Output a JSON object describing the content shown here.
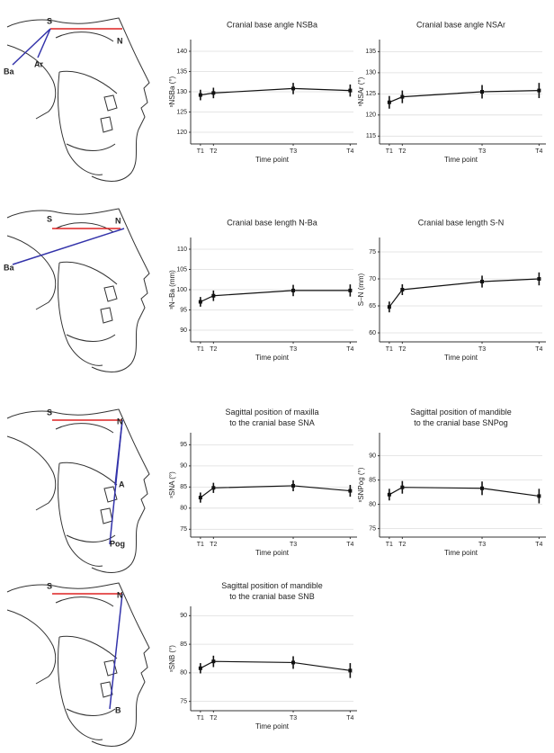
{
  "chart_data": [
    {
      "type": "line",
      "title": "Cranial base angle NSBa",
      "ylabel": "ˢNSBa (°)",
      "xlabel": "Time point",
      "categories": [
        "T1",
        "T2",
        "T3",
        "T4"
      ],
      "values": [
        129.2,
        129.7,
        130.8,
        130.3
      ],
      "errors": [
        1.3,
        1.3,
        1.4,
        1.5
      ],
      "ylim": [
        118,
        142
      ],
      "yticks": [
        120,
        125,
        130,
        135,
        140
      ],
      "color": "#111111",
      "grid": true
    },
    {
      "type": "line",
      "title": "Cranial base angle NSAr",
      "ylabel": "ˢNSAr (°)",
      "xlabel": "Time point",
      "categories": [
        "T1",
        "T2",
        "T3",
        "T4"
      ],
      "values": [
        123,
        124.3,
        125.5,
        125.8
      ],
      "errors": [
        1.5,
        1.5,
        1.6,
        1.8
      ],
      "ylim": [
        114,
        137
      ],
      "yticks": [
        115,
        120,
        125,
        130,
        135
      ],
      "color": "#111111",
      "grid": true
    },
    {
      "type": "line",
      "title": "Cranial base length N-Ba",
      "ylabel": "ˢN–Ba (mm)",
      "xlabel": "Time point",
      "categories": [
        "T1",
        "T2",
        "T3",
        "T4"
      ],
      "values": [
        97,
        98.5,
        99.8,
        99.8
      ],
      "errors": [
        1.2,
        1.3,
        1.4,
        1.5
      ],
      "ylim": [
        88,
        112
      ],
      "yticks": [
        90,
        95,
        100,
        105,
        110
      ],
      "color": "#111111",
      "grid": true
    },
    {
      "type": "line",
      "title": "Cranial base length S-N",
      "ylabel": "S–N (mm)",
      "xlabel": "Time point",
      "categories": [
        "T1",
        "T2",
        "T3",
        "T4"
      ],
      "values": [
        64.8,
        68,
        69.5,
        70
      ],
      "errors": [
        1,
        1,
        1.1,
        1.2
      ],
      "ylim": [
        59,
        77
      ],
      "yticks": [
        60,
        65,
        70,
        75
      ],
      "color": "#111111",
      "grid": true
    },
    {
      "type": "line",
      "title": "Sagittal position of maxilla to the cranial base SNA",
      "ylabel": "ˢSNA (°)",
      "xlabel": "Time point",
      "categories": [
        "T1",
        "T2",
        "T3",
        "T4"
      ],
      "values": [
        82.5,
        84.8,
        85.3,
        84.1
      ],
      "errors": [
        1.2,
        1.2,
        1.3,
        1.4
      ],
      "ylim": [
        74,
        97
      ],
      "yticks": [
        75,
        80,
        85,
        90,
        95
      ],
      "color": "#111111",
      "grid": true
    },
    {
      "type": "line",
      "title": "Sagittal position of mandible to the cranial base SNPog",
      "ylabel": "ˢSNPog (°)",
      "xlabel": "Time point",
      "categories": [
        "T1",
        "T2",
        "T3",
        "T4"
      ],
      "values": [
        82,
        83.5,
        83.3,
        81.7
      ],
      "errors": [
        1.2,
        1.3,
        1.4,
        1.5
      ],
      "ylim": [
        74,
        94
      ],
      "yticks": [
        75,
        80,
        85,
        90
      ],
      "color": "#111111",
      "grid": true
    },
    {
      "type": "line",
      "title": "Sagittal position of mandible to the cranial base SNB",
      "ylabel": "ˢSNB (°)",
      "xlabel": "Time point",
      "categories": [
        "T1",
        "T2",
        "T3",
        "T4"
      ],
      "values": [
        80.8,
        82,
        81.8,
        80.4
      ],
      "errors": [
        0.9,
        1,
        1.1,
        1.3
      ],
      "ylim": [
        74,
        91
      ],
      "yticks": [
        75,
        80,
        85,
        90
      ],
      "color": "#111111",
      "grid": true
    }
  ],
  "diagrams": [
    {
      "labels": [
        "S",
        "N",
        "Ba",
        "Ar"
      ]
    },
    {
      "labels": [
        "S",
        "N",
        "Ba"
      ]
    },
    {
      "labels": [
        "S",
        "N",
        "A",
        "Pog"
      ]
    },
    {
      "labels": [
        "S",
        "N",
        "B"
      ]
    }
  ]
}
